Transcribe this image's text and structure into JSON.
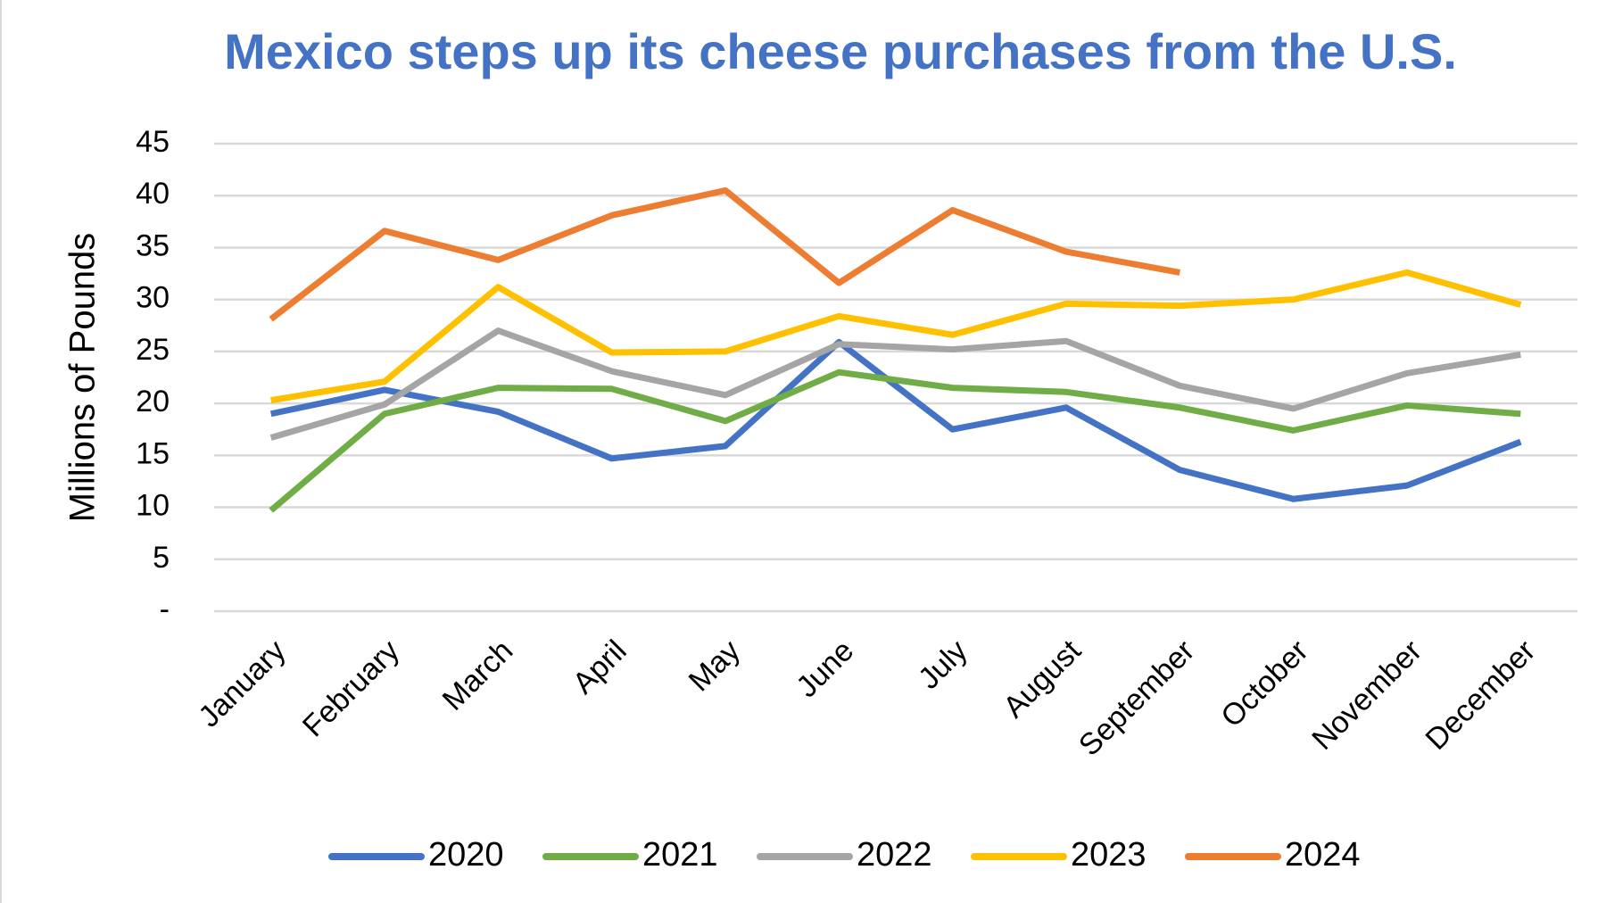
{
  "chart_data": {
    "type": "line",
    "title": "Mexico steps up its cheese purchases from the U.S.",
    "y_label": "Millions of Pounds",
    "categories": [
      "January",
      "February",
      "March",
      "April",
      "May",
      "June",
      "July",
      "August",
      "September",
      "October",
      "November",
      "December"
    ],
    "series": [
      {
        "name": "2020",
        "color": "#4472c4",
        "values": [
          19.0,
          21.3,
          19.2,
          14.7,
          15.9,
          25.9,
          17.5,
          19.6,
          13.6,
          10.8,
          12.1,
          16.3
        ]
      },
      {
        "name": "2021",
        "color": "#70ad47",
        "values": [
          9.7,
          19.0,
          21.5,
          21.4,
          18.3,
          23.0,
          21.5,
          21.1,
          19.6,
          17.4,
          19.8,
          19.0
        ]
      },
      {
        "name": "2022",
        "color": "#a5a5a5",
        "values": [
          16.7,
          19.9,
          27.0,
          23.1,
          20.8,
          25.7,
          25.2,
          26.0,
          21.7,
          19.5,
          22.9,
          24.7
        ]
      },
      {
        "name": "2023",
        "color": "#ffc000",
        "values": [
          20.3,
          22.1,
          31.2,
          24.9,
          25.0,
          28.4,
          26.6,
          29.6,
          29.4,
          30.0,
          32.6,
          29.5
        ]
      },
      {
        "name": "2024",
        "color": "#ed7d31",
        "values": [
          28.1,
          36.6,
          33.8,
          38.1,
          40.5,
          31.6,
          38.6,
          34.6,
          32.6,
          null,
          null,
          null
        ]
      }
    ],
    "ylim": [
      0,
      45
    ],
    "yticks": [
      {
        "value": 0,
        "label": "-"
      },
      5,
      10,
      15,
      20,
      25,
      30,
      35,
      40,
      45
    ],
    "grid": true,
    "legend": "bottom"
  }
}
